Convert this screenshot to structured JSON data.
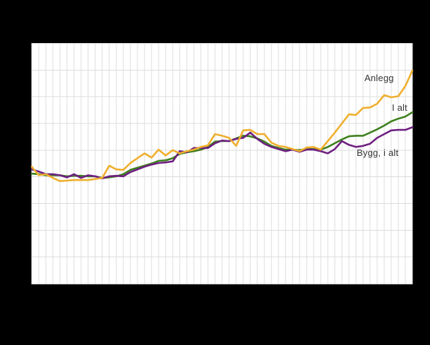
{
  "page": {
    "background_color": "#000000"
  },
  "labels": {
    "anlegg": "Anlegg",
    "i_alt": "I alt",
    "bygg_i_alt": "Bygg, i alt",
    "label_text_color": "#333333"
  },
  "chart": {
    "plot_background_color": "#ffffff",
    "gridline_color": "#dcdcdc",
    "line_width": 2.6
  },
  "chart_data": {
    "type": "line",
    "title": "",
    "xlabel": "",
    "ylabel": "",
    "x_axis": {
      "tick_labels_visible": false,
      "points": 55,
      "minor_gridline_every_point": true
    },
    "y_axis": {
      "tick_labels_visible": false,
      "gridlines": 10,
      "assumed_range": [
        90,
        135
      ],
      "gridline_step": 5,
      "note": "Axis tick labels are not visible in the image (hidden by black background); values estimated from gridlines assuming one gridline interval = 5 index points."
    },
    "legend_position": "end-of-line annotations inside plot",
    "grid": true,
    "series": [
      {
        "name": "I alt",
        "color": "#3e801e",
        "values": [
          110.6,
          110.5,
          110.3,
          110.3,
          110.3,
          110.1,
          110.2,
          110.2,
          110.1,
          110.1,
          109.8,
          109.9,
          110.1,
          110.5,
          111.3,
          111.7,
          112.1,
          112.5,
          113.0,
          113.1,
          113.5,
          114.3,
          114.6,
          114.8,
          115.1,
          115.6,
          116.6,
          116.7,
          116.7,
          117.2,
          117.7,
          117.6,
          117.2,
          116.6,
          115.8,
          115.4,
          115.1,
          115.1,
          115.0,
          115.2,
          115.2,
          115.1,
          115.6,
          116.3,
          117.0,
          117.6,
          117.7,
          117.7,
          118.3,
          118.9,
          119.6,
          120.4,
          120.9,
          121.3,
          122.1
        ]
      },
      {
        "name": "Bygg, i alt",
        "color": "#6e2081",
        "values": [
          111.4,
          111.0,
          110.5,
          110.5,
          110.3,
          109.9,
          110.5,
          109.8,
          110.3,
          110.1,
          109.7,
          110.1,
          110.2,
          110.1,
          110.9,
          111.4,
          111.9,
          112.3,
          112.6,
          112.7,
          112.9,
          114.8,
          114.6,
          115.4,
          115.4,
          115.4,
          116.3,
          116.8,
          116.7,
          117.1,
          117.3,
          118.3,
          117.1,
          116.2,
          115.6,
          115.2,
          114.8,
          115.1,
          114.7,
          115.1,
          115.1,
          114.8,
          114.4,
          115.2,
          116.7,
          116.0,
          115.6,
          115.8,
          116.2,
          117.3,
          118.0,
          118.7,
          118.8,
          118.8,
          119.3
        ]
      },
      {
        "name": "Anlegg",
        "color": "#efaf2e",
        "values": [
          111.9,
          110.3,
          110.5,
          109.8,
          109.2,
          109.3,
          109.4,
          109.4,
          109.4,
          109.6,
          109.8,
          112.1,
          111.4,
          111.3,
          112.6,
          113.5,
          114.4,
          113.6,
          115.1,
          114.0,
          115.0,
          114.4,
          114.8,
          115.1,
          115.6,
          115.9,
          118.0,
          117.7,
          117.3,
          115.8,
          118.7,
          118.8,
          118.0,
          118.0,
          116.4,
          115.8,
          115.6,
          115.2,
          114.8,
          115.5,
          115.6,
          115.1,
          116.7,
          118.3,
          120.0,
          121.7,
          121.6,
          122.9,
          123.0,
          123.7,
          125.3,
          124.9,
          125.1,
          127.0,
          129.9
        ]
      }
    ]
  }
}
